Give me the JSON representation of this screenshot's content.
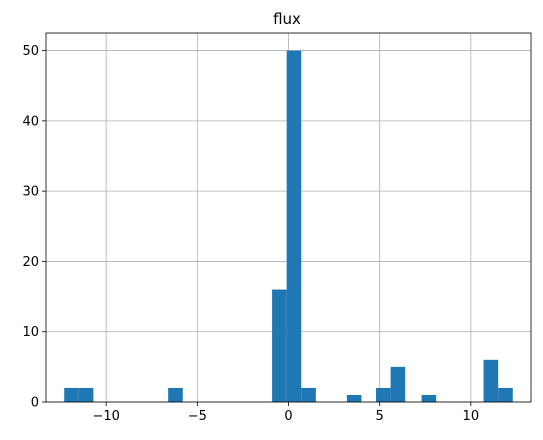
{
  "chart_data": {
    "type": "bar",
    "title": "flux",
    "xlabel": "",
    "ylabel": "",
    "xlim": [
      -13.3,
      13.3
    ],
    "ylim": [
      0,
      52.5
    ],
    "grid": true,
    "bar_color": "#1f77b4",
    "grid_color": "#b0b0b0",
    "xticks": [
      -10,
      -5,
      0,
      5,
      10
    ],
    "yticks": [
      0,
      10,
      20,
      30,
      40,
      50
    ],
    "xtick_labels": [
      "−10",
      "−5",
      "0",
      "5",
      "10"
    ],
    "ytick_labels": [
      "0",
      "10",
      "20",
      "30",
      "40",
      "50"
    ],
    "bins": [
      {
        "x0": -12.3,
        "x1": -11.5,
        "count": 2
      },
      {
        "x0": -11.5,
        "x1": -10.7,
        "count": 2
      },
      {
        "x0": -6.6,
        "x1": -5.8,
        "count": 2
      },
      {
        "x0": -0.9,
        "x1": -0.1,
        "count": 16
      },
      {
        "x0": -0.1,
        "x1": 0.7,
        "count": 50
      },
      {
        "x0": 0.7,
        "x1": 1.5,
        "count": 2
      },
      {
        "x0": 3.2,
        "x1": 4.0,
        "count": 1
      },
      {
        "x0": 4.8,
        "x1": 5.6,
        "count": 2
      },
      {
        "x0": 5.6,
        "x1": 6.4,
        "count": 5
      },
      {
        "x0": 7.3,
        "x1": 8.1,
        "count": 1
      },
      {
        "x0": 10.7,
        "x1": 11.5,
        "count": 6
      },
      {
        "x0": 11.5,
        "x1": 12.3,
        "count": 2
      }
    ]
  }
}
